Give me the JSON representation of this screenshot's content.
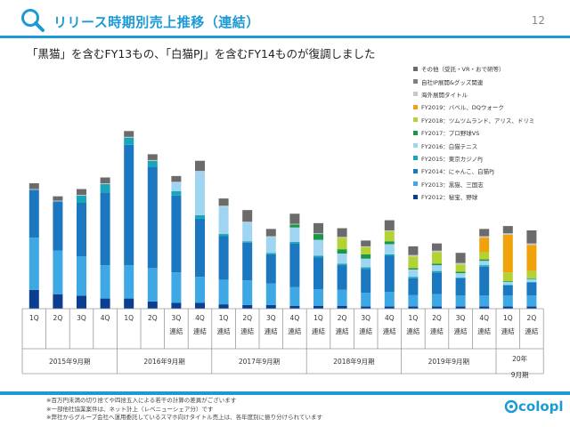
{
  "page": {
    "title": "リリース時期別売上推移（連結）",
    "page_number": "12",
    "subtitle": "「黒猫」を含むFY13もの、「白猫PJ」を含むFY14ものが復調しました",
    "notes": [
      "※百万円未満の切り捨てや四捨五入による若干の計算の差異がございます",
      "※一部他社協業案件は、ネット計上（レベニューシェア分）です",
      "※弊社からグループ会社へ運用委託しているスマホ向けタイトル売上は、各年度別に振り分けられています"
    ],
    "logo_text": "colopl",
    "icons": {
      "header": "search-icon",
      "logo": "colopl-logo-icon"
    },
    "accent_color": "#1c9ad6"
  },
  "chart_data": {
    "type": "bar",
    "stacked": true,
    "categories": [
      "1Q",
      "2Q",
      "3Q",
      "4Q",
      "1Q",
      "2Q",
      "3Q",
      "4Q",
      "1Q",
      "2Q",
      "3Q",
      "4Q",
      "1Q",
      "2Q",
      "3Q",
      "4Q",
      "1Q",
      "2Q",
      "3Q",
      "4Q",
      "1Q",
      "2Q"
    ],
    "tick_labels": [
      [
        "1Q"
      ],
      [
        "2Q"
      ],
      [
        "3Q"
      ],
      [
        "4Q"
      ],
      [
        "1Q"
      ],
      [
        "2Q"
      ],
      [
        "3Q",
        "連結"
      ],
      [
        "4Q",
        "連結"
      ],
      [
        "1Q",
        "連結"
      ],
      [
        "2Q",
        "連結"
      ],
      [
        "3Q",
        "連結"
      ],
      [
        "4Q",
        "連結"
      ],
      [
        "1Q",
        "連結"
      ],
      [
        "2Q",
        "連結"
      ],
      [
        "3Q",
        "連結"
      ],
      [
        "4Q",
        "連結"
      ],
      [
        "1Q",
        "連結"
      ],
      [
        "2Q",
        "連結"
      ],
      [
        "3Q",
        "連結"
      ],
      [
        "4Q",
        "連結"
      ],
      [
        "1Q",
        "連結"
      ],
      [
        "2Q",
        "連結"
      ]
    ],
    "groups": [
      {
        "label": "2015年9月期",
        "start": 0,
        "count": 4
      },
      {
        "label": "2016年9月期",
        "start": 4,
        "count": 4
      },
      {
        "label": "2017年9月期",
        "start": 8,
        "count": 4
      },
      {
        "label": "2018年9月期",
        "start": 12,
        "count": 4
      },
      {
        "label": "2019年9月期",
        "start": 16,
        "count": 4
      },
      {
        "label": "20年\n9月期",
        "start": 20,
        "count": 2
      }
    ],
    "series": [
      {
        "name": "FY2012：秘宝、野球",
        "color": "#0b3d91",
        "values": [
          26,
          20,
          18,
          14,
          14,
          10,
          8,
          8,
          6,
          5,
          5,
          4,
          4,
          4,
          3,
          3,
          3,
          3,
          3,
          3,
          3,
          3
        ]
      },
      {
        "name": "FY2013：黒猫、三国志",
        "color": "#3ea8e5",
        "values": [
          72,
          60,
          54,
          46,
          46,
          46,
          42,
          36,
          34,
          34,
          30,
          26,
          23,
          22,
          19,
          20,
          16,
          17,
          15,
          15,
          15,
          15
        ]
      },
      {
        "name": "FY2014：にゃんこ、白猫PJ",
        "color": "#1b78c0",
        "values": [
          66,
          68,
          74,
          100,
          166,
          140,
          106,
          80,
          60,
          52,
          40,
          60,
          44,
          34,
          33,
          50,
          23,
          30,
          24,
          40,
          14,
          18
        ]
      },
      {
        "name": "FY2015：東京カジノPJ",
        "color": "#19a6b8",
        "values": [
          0,
          0,
          10,
          12,
          10,
          8,
          6,
          5,
          3,
          2,
          2,
          2,
          2,
          2,
          2,
          2,
          2,
          2,
          1,
          2,
          1,
          1
        ]
      },
      {
        "name": "FY2016：白猫テニス",
        "color": "#9fd5f0",
        "values": [
          0,
          0,
          0,
          0,
          0,
          0,
          12,
          60,
          38,
          26,
          22,
          20,
          22,
          14,
          12,
          14,
          10,
          8,
          6,
          6,
          4,
          4
        ]
      },
      {
        "name": "FY2017：プロ野球VS",
        "color": "#1a9848",
        "values": [
          0,
          0,
          0,
          0,
          0,
          0,
          0,
          0,
          0,
          0,
          0,
          4,
          8,
          6,
          6,
          4,
          2,
          2,
          2,
          2,
          1,
          1
        ]
      },
      {
        "name": "FY2018：ツムツムランド、アリス、ドリミ",
        "color": "#b3d234",
        "values": [
          0,
          0,
          0,
          0,
          0,
          0,
          0,
          0,
          0,
          0,
          0,
          0,
          0,
          16,
          10,
          14,
          16,
          16,
          10,
          10,
          12,
          10
        ]
      },
      {
        "name": "FY2019：バベル、DQウォーク",
        "color": "#f0a20a",
        "values": [
          0,
          0,
          0,
          0,
          0,
          0,
          0,
          0,
          0,
          0,
          0,
          0,
          0,
          0,
          0,
          0,
          0,
          0,
          0,
          20,
          52,
          36
        ]
      },
      {
        "name": "海外展開タイトル",
        "color": "#c8c8c8",
        "values": [
          1,
          1,
          1,
          1,
          1,
          1,
          1,
          1,
          1,
          1,
          1,
          1,
          1,
          1,
          1,
          1,
          2,
          2,
          2,
          2,
          2,
          2
        ]
      },
      {
        "name": "自社IP展開&グッズ関連",
        "color": "#7f7f7f",
        "values": [
          0,
          0,
          0,
          0,
          0,
          0,
          0,
          0,
          0,
          0,
          0,
          0,
          0,
          0,
          0,
          0,
          0,
          0,
          0,
          0,
          0,
          0
        ]
      },
      {
        "name": "その他（受託・VR・おで研等）",
        "color": "#6b6b6b",
        "values": [
          8,
          6,
          8,
          8,
          8,
          8,
          8,
          14,
          10,
          16,
          10,
          14,
          14,
          12,
          8,
          14,
          12,
          10,
          14,
          10,
          10,
          18
        ]
      }
    ],
    "legend_order": [
      10,
      9,
      8,
      7,
      6,
      5,
      4,
      3,
      2,
      1,
      0
    ],
    "legend_position": "top-right",
    "grid": false
  }
}
